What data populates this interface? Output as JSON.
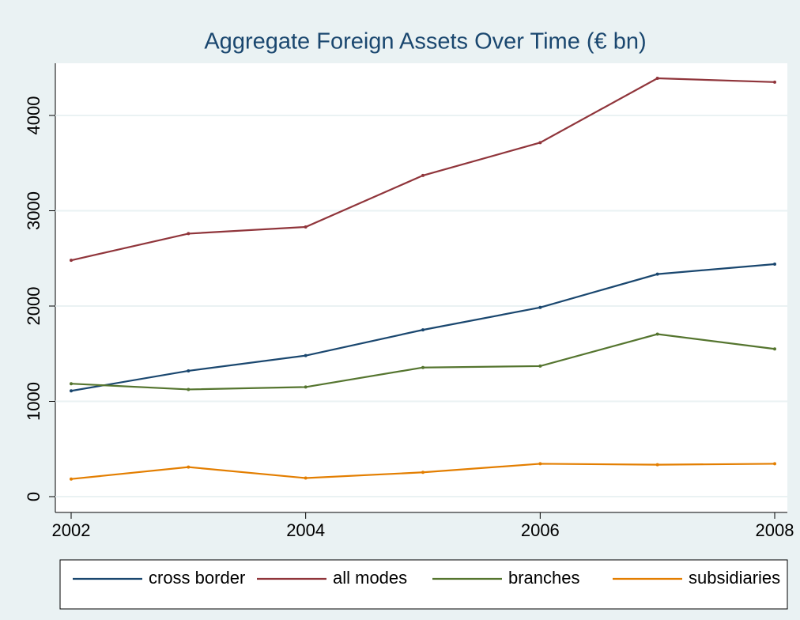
{
  "chart_data": {
    "type": "line",
    "title": "Aggregate Foreign Assets Over Time (€ bn)",
    "x": [
      2002,
      2003,
      2004,
      2005,
      2006,
      2007,
      2008
    ],
    "series": [
      {
        "name": "cross border",
        "color": "#1a476f",
        "values": [
          1110,
          1320,
          1480,
          1750,
          1985,
          2335,
          2440
        ]
      },
      {
        "name": "all modes",
        "color": "#90353b",
        "values": [
          2480,
          2760,
          2830,
          3370,
          3715,
          4390,
          4350
        ]
      },
      {
        "name": "branches",
        "color": "#55752f",
        "values": [
          1185,
          1125,
          1150,
          1355,
          1370,
          1705,
          1550
        ]
      },
      {
        "name": "subsidiaries",
        "color": "#e37e00",
        "values": [
          185,
          310,
          195,
          255,
          345,
          335,
          345
        ]
      }
    ],
    "xlim": [
      2002,
      2008
    ],
    "xticks": [
      2002,
      2004,
      2006,
      2008
    ],
    "ylim": [
      0,
      4500
    ],
    "yticks": [
      0,
      1000,
      2000,
      3000,
      4000
    ],
    "grid": true,
    "legend": "bottom"
  }
}
